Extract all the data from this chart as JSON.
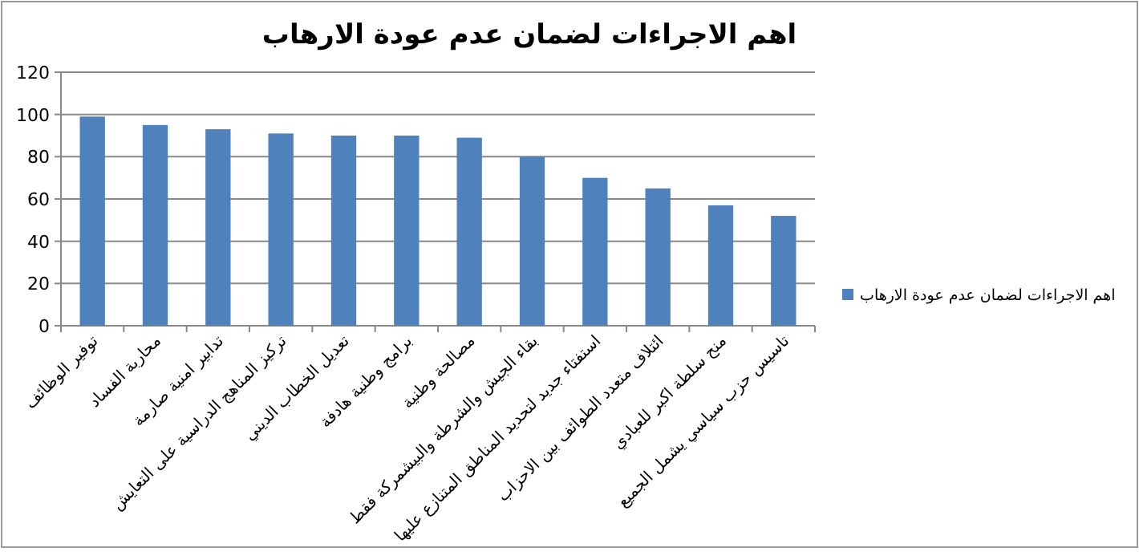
{
  "chart_data": {
    "type": "bar",
    "title": "اهم الاجراءات لضمان عدم عودة الارهاب",
    "categories": [
      "توفير الوظائف",
      "محاربة الفساد",
      "تدابير امنية صارمة",
      "تركيز المناهج الدراسية على التعايش",
      "تعديل الخطاب الديني",
      "برامج وطنية هادفة",
      "مصالحة وطنية",
      "بقاء الجيش والشرطة والبيشمركة فقط",
      "استفتاء جديد لتحديد المناطق المتنازع عليها",
      "ائتلاف متعدد الطوائف بين الاحزاب",
      "منح سلطة اكبر للعبادي",
      "تاسيس حزب سياسي يشمل الجميع"
    ],
    "series": [
      {
        "name": "اهم الاجراءات لضمان عدم عودة الارهاب",
        "color": "#4f81bd",
        "values": [
          99,
          95,
          93,
          91,
          90,
          90,
          89,
          80,
          70,
          65,
          57,
          52
        ]
      }
    ],
    "ylim": [
      0,
      120
    ],
    "yticks": [
      0,
      20,
      40,
      60,
      80,
      100,
      120
    ],
    "grid": "y",
    "legend": "right"
  }
}
